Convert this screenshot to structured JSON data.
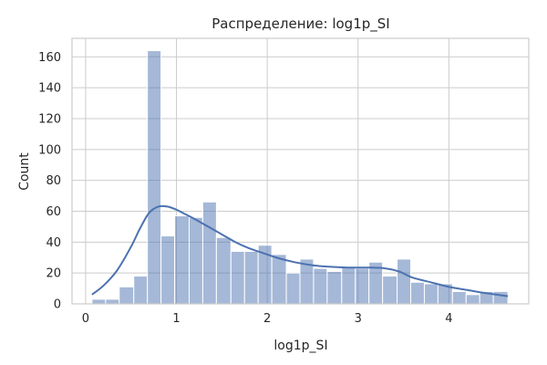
{
  "chart_data": {
    "type": "histogram",
    "title": "Распределение: log1p_SI",
    "xlabel": "log1p_SI",
    "ylabel": "Count",
    "xlim": [
      -0.15,
      4.88
    ],
    "ylim": [
      0,
      172
    ],
    "xticks": [
      0,
      1,
      2,
      3,
      4
    ],
    "yticks": [
      0,
      20,
      40,
      60,
      80,
      100,
      120,
      140,
      160
    ],
    "grid": true,
    "bar_color": "#4c72b0",
    "line_color": "#4c72b0",
    "bins": [
      {
        "x0": 0.07,
        "x1": 0.22,
        "count": 3
      },
      {
        "x0": 0.22,
        "x1": 0.37,
        "count": 3
      },
      {
        "x0": 0.37,
        "x1": 0.53,
        "count": 11
      },
      {
        "x0": 0.53,
        "x1": 0.68,
        "count": 18
      },
      {
        "x0": 0.68,
        "x1": 0.83,
        "count": 164
      },
      {
        "x0": 0.83,
        "x1": 0.98,
        "count": 44
      },
      {
        "x0": 0.98,
        "x1": 1.14,
        "count": 57
      },
      {
        "x0": 1.14,
        "x1": 1.29,
        "count": 56
      },
      {
        "x0": 1.29,
        "x1": 1.44,
        "count": 66
      },
      {
        "x0": 1.44,
        "x1": 1.6,
        "count": 43
      },
      {
        "x0": 1.6,
        "x1": 1.75,
        "count": 34
      },
      {
        "x0": 1.75,
        "x1": 1.9,
        "count": 34
      },
      {
        "x0": 1.9,
        "x1": 2.05,
        "count": 38
      },
      {
        "x0": 2.05,
        "x1": 2.21,
        "count": 32
      },
      {
        "x0": 2.21,
        "x1": 2.36,
        "count": 20
      },
      {
        "x0": 2.36,
        "x1": 2.51,
        "count": 29
      },
      {
        "x0": 2.51,
        "x1": 2.66,
        "count": 23
      },
      {
        "x0": 2.66,
        "x1": 2.82,
        "count": 21
      },
      {
        "x0": 2.82,
        "x1": 2.97,
        "count": 24
      },
      {
        "x0": 2.97,
        "x1": 3.12,
        "count": 23
      },
      {
        "x0": 3.12,
        "x1": 3.27,
        "count": 27
      },
      {
        "x0": 3.27,
        "x1": 3.43,
        "count": 18
      },
      {
        "x0": 3.43,
        "x1": 3.58,
        "count": 29
      },
      {
        "x0": 3.58,
        "x1": 3.73,
        "count": 14
      },
      {
        "x0": 3.73,
        "x1": 3.88,
        "count": 13
      },
      {
        "x0": 3.88,
        "x1": 4.04,
        "count": 13
      },
      {
        "x0": 4.04,
        "x1": 4.19,
        "count": 8
      },
      {
        "x0": 4.19,
        "x1": 4.34,
        "count": 6
      },
      {
        "x0": 4.34,
        "x1": 4.49,
        "count": 8
      },
      {
        "x0": 4.49,
        "x1": 4.65,
        "count": 8
      }
    ],
    "kde": {
      "x": [
        0.07,
        0.2,
        0.35,
        0.5,
        0.6,
        0.7,
        0.8,
        0.9,
        1.0,
        1.1,
        1.2,
        1.35,
        1.5,
        1.65,
        1.8,
        1.95,
        2.1,
        2.3,
        2.5,
        2.7,
        2.9,
        3.1,
        3.3,
        3.45,
        3.6,
        3.8,
        4.0,
        4.2,
        4.4,
        4.65
      ],
      "y": [
        6,
        12,
        22,
        37,
        49,
        59,
        63,
        63,
        61,
        58,
        55,
        50,
        45,
        40,
        36,
        33,
        30,
        27,
        25,
        24,
        23.5,
        23.5,
        23,
        21,
        17,
        14,
        11,
        9,
        7,
        5
      ]
    }
  }
}
